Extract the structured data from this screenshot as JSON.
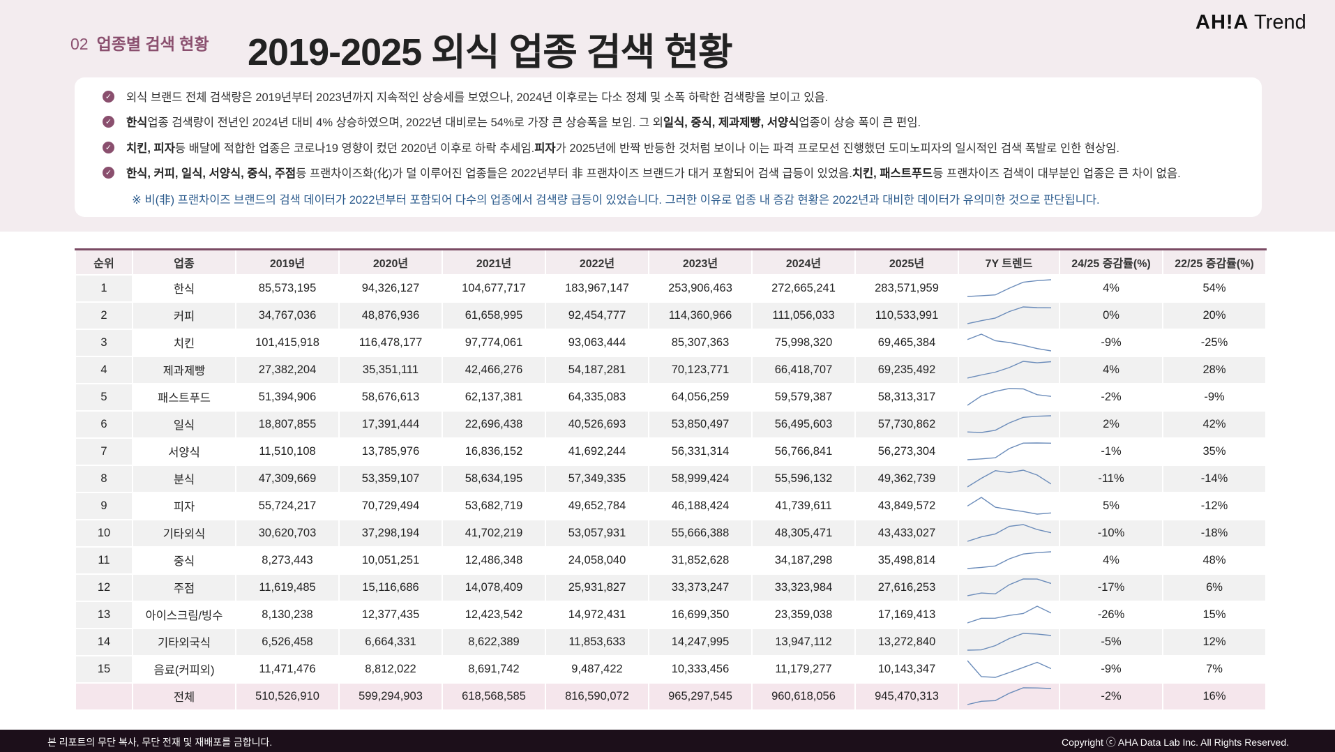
{
  "header": {
    "section_number": "02",
    "section_title": "업종별 검색 현황",
    "title": "2019-2025 외식 업종 검색 현황",
    "logo_brand": "AH!A",
    "logo_suffix": "Trend"
  },
  "summary": {
    "bullets": [
      [
        {
          "t": "외식 브랜드 전체 검색량은 2019년부터 2023년까지 지속적인 상승세를 보였으나, 2024년 이후로는 다소 정체 및 소폭 하락한 검색량을 보이고 있음.",
          "b": false
        }
      ],
      [
        {
          "t": "한식",
          "b": true
        },
        {
          "t": " 업종 검색량이 전년인 2024년 대비 4% 상승하였으며, 2022년 대비로는 54%로 가장 큰 상승폭을 보임. 그 외 ",
          "b": false
        },
        {
          "t": "일식, 중식, 제과제빵, 서양식",
          "b": true
        },
        {
          "t": " 업종이 상승 폭이 큰 편임.",
          "b": false
        }
      ],
      [
        {
          "t": "치킨, 피자",
          "b": true
        },
        {
          "t": " 등 배달에 적합한 업종은 코로나19 영향이 컸던 2020년 이후로 하락 추세임. ",
          "b": false
        },
        {
          "t": "피자",
          "b": true
        },
        {
          "t": "가 2025년에 반짝 반등한 것처럼 보이나 이는 파격 프로모션 진행했던 도미노피자의 일시적인 검색 폭발로 인한 현상임.",
          "b": false
        }
      ],
      [
        {
          "t": "한식, 커피, 일식, 서양식, 중식, 주점",
          "b": true
        },
        {
          "t": " 등 프랜차이즈화(化)가 덜 이루어진 업종들은 2022년부터 非 프랜차이즈 브랜드가 대거 포함되어 검색 급등이 있었음. ",
          "b": false
        },
        {
          "t": "치킨, 패스트푸드",
          "b": true
        },
        {
          "t": " 등 프랜차이즈 검색이 대부분인 업종은 큰 차이 없음.",
          "b": false
        }
      ]
    ],
    "note": "※  비(非) 프랜차이즈 브랜드의 검색 데이터가 2022년부터 포함되어 다수의 업종에서 검색량 급등이 있었습니다. 그러한 이유로 업종 내 증감 현황은 2022년과 대비한 데이터가 유의미한 것으로 판단됩니다."
  },
  "table": {
    "headers": [
      "순위",
      "업종",
      "2019년",
      "2020년",
      "2021년",
      "2022년",
      "2023년",
      "2024년",
      "2025년",
      "7Y 트렌드",
      "24/25 증감률(%)",
      "22/25 증감률(%)"
    ],
    "sparkline_color": "#6b8cba",
    "rows": [
      [
        "1",
        "한식",
        "85,573,195",
        "94,326,127",
        "104,677,717",
        "183,967,147",
        "253,906,463",
        "272,665,241",
        "283,571,959",
        "4%",
        "54%"
      ],
      [
        "2",
        "커피",
        "34,767,036",
        "48,876,936",
        "61,658,995",
        "92,454,777",
        "114,360,966",
        "111,056,033",
        "110,533,991",
        "0%",
        "20%"
      ],
      [
        "3",
        "치킨",
        "101,415,918",
        "116,478,177",
        "97,774,061",
        "93,063,444",
        "85,307,363",
        "75,998,320",
        "69,465,384",
        "-9%",
        "-25%"
      ],
      [
        "4",
        "제과제빵",
        "27,382,204",
        "35,351,111",
        "42,466,276",
        "54,187,281",
        "70,123,771",
        "66,418,707",
        "69,235,492",
        "4%",
        "28%"
      ],
      [
        "5",
        "패스트푸드",
        "51,394,906",
        "58,676,613",
        "62,137,381",
        "64,335,083",
        "64,056,259",
        "59,579,387",
        "58,313,317",
        "-2%",
        "-9%"
      ],
      [
        "6",
        "일식",
        "18,807,855",
        "17,391,444",
        "22,696,438",
        "40,526,693",
        "53,850,497",
        "56,495,603",
        "57,730,862",
        "2%",
        "42%"
      ],
      [
        "7",
        "서양식",
        "11,510,108",
        "13,785,976",
        "16,836,152",
        "41,692,244",
        "56,331,314",
        "56,766,841",
        "56,273,304",
        "-1%",
        "35%"
      ],
      [
        "8",
        "분식",
        "47,309,669",
        "53,359,107",
        "58,634,195",
        "57,349,335",
        "58,999,424",
        "55,596,132",
        "49,362,739",
        "-11%",
        "-14%"
      ],
      [
        "9",
        "피자",
        "55,724,217",
        "70,729,494",
        "53,682,719",
        "49,652,784",
        "46,188,424",
        "41,739,611",
        "43,849,572",
        "5%",
        "-12%"
      ],
      [
        "10",
        "기타외식",
        "30,620,703",
        "37,298,194",
        "41,702,219",
        "53,057,931",
        "55,666,388",
        "48,305,471",
        "43,433,027",
        "-10%",
        "-18%"
      ],
      [
        "11",
        "중식",
        "8,273,443",
        "10,051,251",
        "12,486,348",
        "24,058,040",
        "31,852,628",
        "34,187,298",
        "35,498,814",
        "4%",
        "48%"
      ],
      [
        "12",
        "주점",
        "11,619,485",
        "15,116,686",
        "14,078,409",
        "25,931,827",
        "33,373,247",
        "33,323,984",
        "27,616,253",
        "-17%",
        "6%"
      ],
      [
        "13",
        "아이스크림/빙수",
        "8,130,238",
        "12,377,435",
        "12,423,542",
        "14,972,431",
        "16,699,350",
        "23,359,038",
        "17,169,413",
        "-26%",
        "15%"
      ],
      [
        "14",
        "기타외국식",
        "6,526,458",
        "6,664,331",
        "8,622,389",
        "11,853,633",
        "14,247,995",
        "13,947,112",
        "13,272,840",
        "-5%",
        "12%"
      ],
      [
        "15",
        "음료(커피외)",
        "11,471,476",
        "8,812,022",
        "8,691,742",
        "9,487,422",
        "10,333,456",
        "11,179,277",
        "10,143,347",
        "-9%",
        "7%"
      ],
      [
        "",
        "전체",
        "510,526,910",
        "599,294,903",
        "618,568,585",
        "816,590,072",
        "965,297,545",
        "960,618,056",
        "945,470,313",
        "-2%",
        "16%"
      ]
    ]
  },
  "footer": {
    "notice": "본 리포트의 무단 복사, 무단 전재 및 재배포를 금합니다.",
    "copyright": "Copyright ⓒ AHA Data Lab Inc. All Rights Reserved."
  }
}
